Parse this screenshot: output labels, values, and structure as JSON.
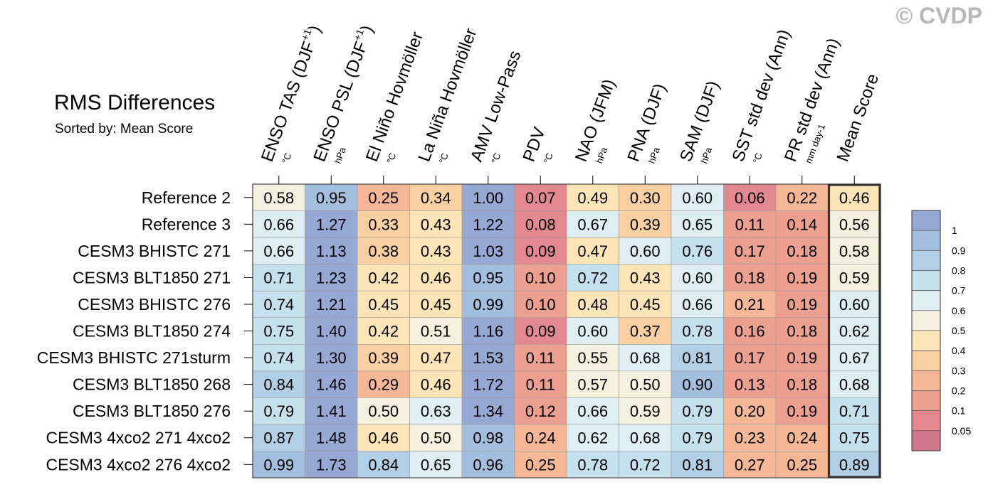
{
  "title": "RMS Differences",
  "subtitle": "Sorted by: Mean Score",
  "copyright": "© CVDP",
  "chart_data": {
    "type": "heatmap",
    "columns": [
      {
        "name": "ENSO TAS (DJF",
        "sup": "+1",
        "close": ")",
        "unit": "°C"
      },
      {
        "name": "ENSO PSL (DJF",
        "sup": "+1",
        "close": ")",
        "unit": "hPa"
      },
      {
        "name": "El Niño Hovmöller",
        "sup": "",
        "close": "",
        "unit": "°C"
      },
      {
        "name": "La Niña Hovmöller",
        "sup": "",
        "close": "",
        "unit": "°C"
      },
      {
        "name": "AMV Low-Pass",
        "sup": "",
        "close": "",
        "unit": "°C"
      },
      {
        "name": "PDV",
        "sup": "",
        "close": "",
        "unit": "°C"
      },
      {
        "name": "NAO (JFM)",
        "sup": "",
        "close": "",
        "unit": "hPa"
      },
      {
        "name": "PNA (DJF)",
        "sup": "",
        "close": "",
        "unit": "hPa"
      },
      {
        "name": "SAM (DJF)",
        "sup": "",
        "close": "",
        "unit": "hPa"
      },
      {
        "name": "SST std dev (Ann)",
        "sup": "",
        "close": "",
        "unit": "°C"
      },
      {
        "name": "PR std dev (Ann)",
        "sup": "",
        "close": "",
        "unit": "mm day-1"
      },
      {
        "name": "Mean Score",
        "sup": "",
        "close": "",
        "unit": ""
      }
    ],
    "rows": [
      "Reference 2",
      "Reference 3",
      "CESM3 BHISTC 271",
      "CESM3 BLT1850 271",
      "CESM3 BHISTC 276",
      "CESM3 BLT1850 274",
      "CESM3 BHISTC 271sturm",
      "CESM3 BLT1850 268",
      "CESM3 BLT1850 276",
      "CESM3 4xco2 271 4xco2",
      "CESM3 4xco2 276 4xco2"
    ],
    "values": [
      [
        "0.58",
        "0.95",
        "0.25",
        "0.34",
        "1.00",
        "0.07",
        "0.49",
        "0.30",
        "0.60",
        "0.06",
        "0.22",
        "0.46"
      ],
      [
        "0.66",
        "1.27",
        "0.33",
        "0.43",
        "1.22",
        "0.08",
        "0.67",
        "0.39",
        "0.65",
        "0.11",
        "0.14",
        "0.56"
      ],
      [
        "0.66",
        "1.13",
        "0.38",
        "0.43",
        "1.03",
        "0.09",
        "0.47",
        "0.60",
        "0.76",
        "0.17",
        "0.18",
        "0.58"
      ],
      [
        "0.71",
        "1.23",
        "0.42",
        "0.46",
        "0.95",
        "0.10",
        "0.72",
        "0.43",
        "0.60",
        "0.18",
        "0.19",
        "0.59"
      ],
      [
        "0.74",
        "1.21",
        "0.45",
        "0.45",
        "0.99",
        "0.10",
        "0.48",
        "0.45",
        "0.66",
        "0.21",
        "0.19",
        "0.60"
      ],
      [
        "0.75",
        "1.40",
        "0.42",
        "0.51",
        "1.16",
        "0.09",
        "0.60",
        "0.37",
        "0.78",
        "0.16",
        "0.18",
        "0.62"
      ],
      [
        "0.74",
        "1.30",
        "0.39",
        "0.47",
        "1.53",
        "0.11",
        "0.55",
        "0.68",
        "0.81",
        "0.17",
        "0.19",
        "0.67"
      ],
      [
        "0.84",
        "1.46",
        "0.29",
        "0.46",
        "1.72",
        "0.11",
        "0.57",
        "0.50",
        "0.90",
        "0.13",
        "0.18",
        "0.68"
      ],
      [
        "0.79",
        "1.41",
        "0.50",
        "0.63",
        "1.34",
        "0.12",
        "0.66",
        "0.59",
        "0.79",
        "0.20",
        "0.19",
        "0.71"
      ],
      [
        "0.87",
        "1.48",
        "0.46",
        "0.50",
        "0.98",
        "0.24",
        "0.62",
        "0.68",
        "0.79",
        "0.23",
        "0.24",
        "0.75"
      ],
      [
        "0.99",
        "1.73",
        "0.84",
        "0.65",
        "0.96",
        "0.25",
        "0.78",
        "0.72",
        "0.81",
        "0.27",
        "0.25",
        "0.89"
      ]
    ],
    "colorbar": {
      "levels": [
        0.05,
        0.1,
        0.2,
        0.3,
        0.4,
        0.5,
        0.6,
        0.7,
        0.8,
        0.9,
        1
      ],
      "tick_labels": [
        "1",
        "0.9",
        "0.8",
        "0.7",
        "0.6",
        "0.5",
        "0.4",
        "0.3",
        "0.2",
        "0.1",
        "0.05"
      ],
      "colors": [
        "#d0778c",
        "#e3888e",
        "#ed9f90",
        "#f5b795",
        "#fad0a2",
        "#fde5b8",
        "#f4f1df",
        "#deeef3",
        "#c6e1ee",
        "#b3cfe6",
        "#a4bee0",
        "#95a9d4"
      ]
    },
    "highlight_column": "Mean Score"
  }
}
